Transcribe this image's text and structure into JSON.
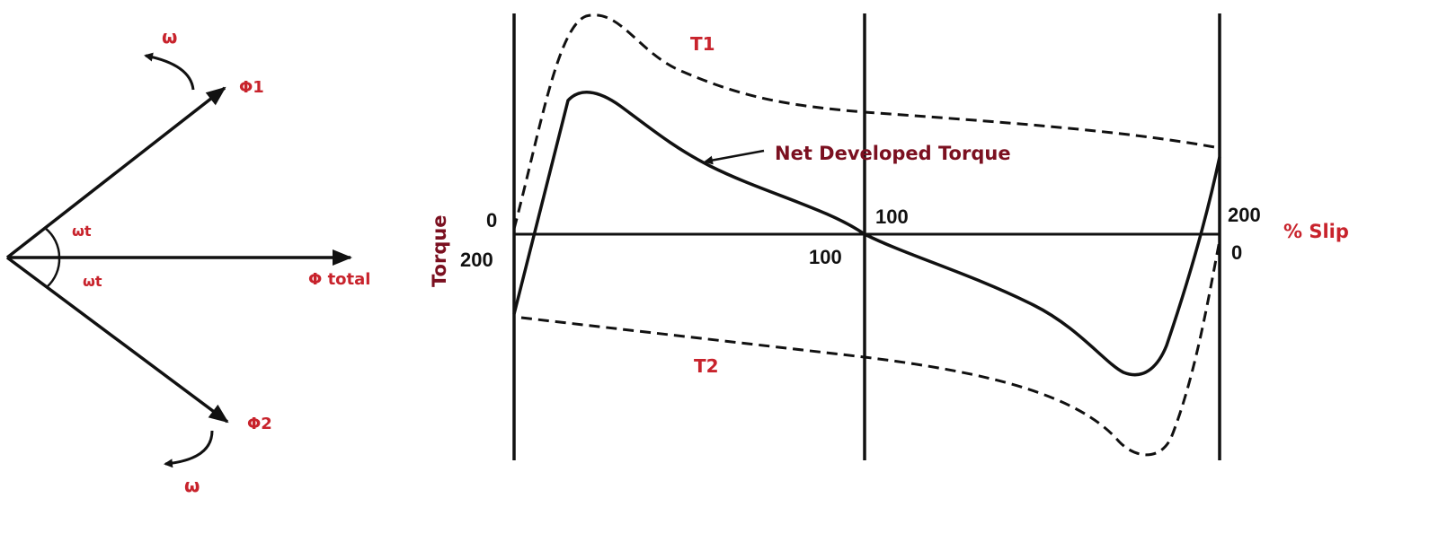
{
  "colors": {
    "ink": "#111111",
    "label_red": "#c8232c",
    "label_maroon": "#7b1020"
  },
  "phasor_diagram": {
    "phi1_label": "Φ1",
    "phi2_label": "Φ2",
    "phi_total_label": "Φ total",
    "angle_label_upper": "ωt",
    "angle_label_lower": "ωt",
    "omega_label_upper": "ω",
    "omega_label_lower": "ω"
  },
  "torque_slip_graph": {
    "y_axis_label": "Torque",
    "x_axis_label": "% Slip",
    "curve_label_t1": "T1",
    "curve_label_t2": "T2",
    "curve_label_net": "Net Developed Torque",
    "left_axis_top_tick": "0",
    "left_axis_bottom_tick": "200",
    "mid_axis_top_tick": "100",
    "mid_axis_bottom_tick": "100",
    "right_axis_top_tick": "200",
    "right_axis_bottom_tick": "0"
  }
}
